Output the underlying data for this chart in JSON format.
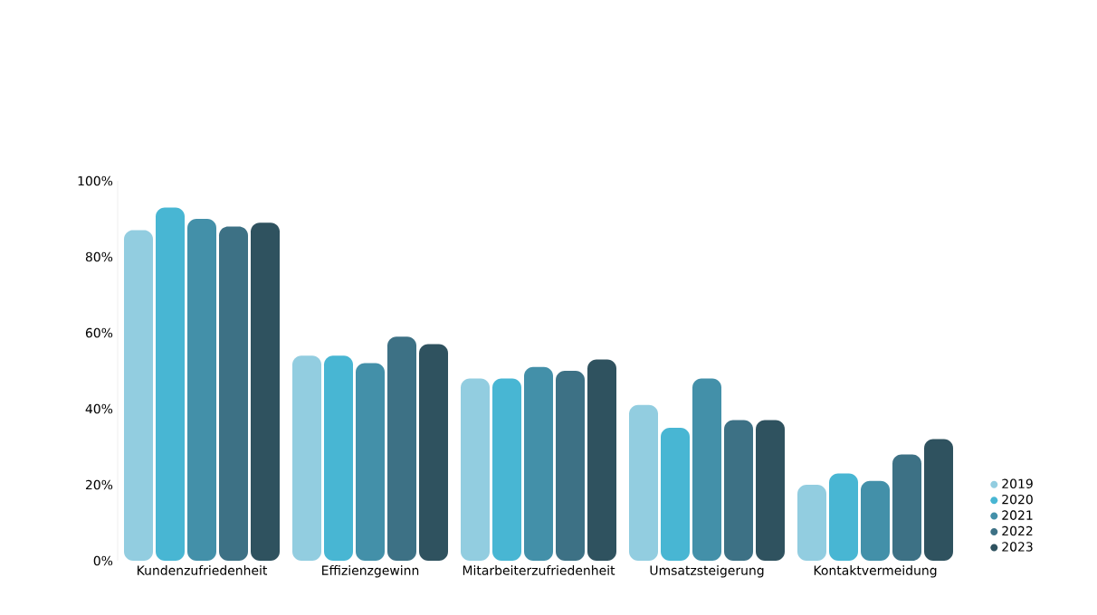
{
  "chart_data": {
    "type": "bar",
    "categories": [
      "Kundenzufriedenheit",
      "Effizienzgewinn",
      "Mitarbeiterzufriedenheit",
      "Umsatzsteigerung",
      "Kontaktvermeidung"
    ],
    "series": [
      {
        "name": "2019",
        "color": "#92cde0",
        "values": [
          87,
          54,
          48,
          41,
          20
        ]
      },
      {
        "name": "2020",
        "color": "#48b6d3",
        "values": [
          93,
          54,
          48,
          35,
          23
        ]
      },
      {
        "name": "2021",
        "color": "#4390a9",
        "values": [
          90,
          52,
          51,
          48,
          21
        ]
      },
      {
        "name": "2022",
        "color": "#3d7185",
        "values": [
          88,
          59,
          50,
          37,
          28
        ]
      },
      {
        "name": "2023",
        "color": "#2f525f",
        "values": [
          89,
          57,
          53,
          37,
          32
        ]
      }
    ],
    "ylim": [
      0,
      100
    ],
    "yticks": [
      {
        "value": 0,
        "label": "0%"
      },
      {
        "value": 20,
        "label": "20%"
      },
      {
        "value": 40,
        "label": "40%"
      },
      {
        "value": 60,
        "label": "60%"
      },
      {
        "value": 80,
        "label": "80%"
      },
      {
        "value": 100,
        "label": "100%"
      }
    ],
    "grid": false,
    "legend": "bottom right",
    "marker": "circle"
  }
}
